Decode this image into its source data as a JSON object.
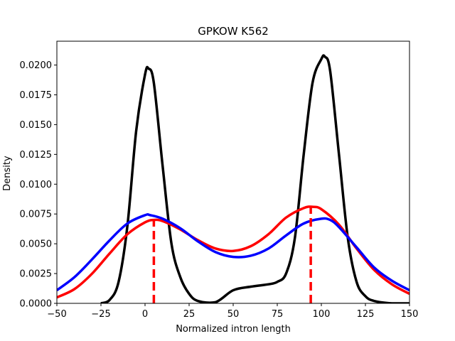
{
  "chart_data": {
    "type": "line",
    "title": "GPKOW K562",
    "xlabel": "Normalized intron length",
    "ylabel": "Density",
    "xlim": [
      -50,
      150
    ],
    "ylim": [
      0,
      0.022
    ],
    "xticks": [
      -50,
      -25,
      0,
      25,
      50,
      75,
      100,
      125,
      150
    ],
    "xtick_labels": [
      "−50",
      "−25",
      "0",
      "25",
      "50",
      "75",
      "100",
      "125",
      "150"
    ],
    "yticks": [
      0,
      0.0025,
      0.005,
      0.0075,
      0.01,
      0.0125,
      0.015,
      0.0175,
      0.02
    ],
    "ytick_labels": [
      "0.0000",
      "0.0025",
      "0.0050",
      "0.0075",
      "0.0100",
      "0.0125",
      "0.0150",
      "0.0175",
      "0.0200"
    ],
    "grid": false,
    "series": [
      {
        "color": "#000000",
        "style": "solid",
        "x": [
          -25,
          -20,
          -15,
          -10,
          -5,
          0,
          2,
          5,
          10,
          15,
          20,
          25,
          30,
          40,
          50,
          60,
          70,
          75,
          80,
          85,
          90,
          95,
          100,
          102,
          105,
          110,
          115,
          120,
          125,
          130,
          140,
          150
        ],
        "y": [
          0.0,
          0.0003,
          0.0018,
          0.0065,
          0.0145,
          0.0192,
          0.0197,
          0.0185,
          0.0115,
          0.005,
          0.0022,
          0.0008,
          0.0002,
          0.0001,
          0.0011,
          0.0014,
          0.0016,
          0.0018,
          0.0025,
          0.0055,
          0.0125,
          0.0185,
          0.0205,
          0.0207,
          0.0195,
          0.0125,
          0.0055,
          0.0018,
          0.0006,
          0.0002,
          0.0,
          0.0
        ]
      },
      {
        "color": "#ff0000",
        "style": "solid",
        "x": [
          -50,
          -40,
          -30,
          -20,
          -10,
          0,
          5,
          10,
          20,
          30,
          40,
          50,
          60,
          70,
          80,
          90,
          95,
          100,
          110,
          120,
          130,
          140,
          150
        ],
        "y": [
          0.0005,
          0.0012,
          0.0025,
          0.0042,
          0.0058,
          0.0068,
          0.007,
          0.0069,
          0.0062,
          0.0053,
          0.0046,
          0.0044,
          0.0048,
          0.0058,
          0.0072,
          0.008,
          0.0081,
          0.0079,
          0.0066,
          0.0046,
          0.0028,
          0.0016,
          0.0008
        ]
      },
      {
        "color": "#0000ff",
        "style": "solid",
        "x": [
          -50,
          -40,
          -30,
          -20,
          -10,
          0,
          3,
          10,
          20,
          30,
          40,
          50,
          60,
          70,
          80,
          90,
          100,
          105,
          110,
          120,
          130,
          140,
          150
        ],
        "y": [
          0.0011,
          0.0022,
          0.0037,
          0.0053,
          0.0067,
          0.0074,
          0.0074,
          0.0071,
          0.0063,
          0.0052,
          0.0043,
          0.0039,
          0.004,
          0.0046,
          0.0057,
          0.0067,
          0.0071,
          0.007,
          0.0064,
          0.0047,
          0.003,
          0.0019,
          0.0011
        ]
      }
    ],
    "vlines": [
      {
        "x": 5,
        "y_top": 0.007,
        "color": "#ff0000",
        "style": "dashed"
      },
      {
        "x": 94,
        "y_top": 0.0081,
        "color": "#ff0000",
        "style": "dashed"
      }
    ]
  }
}
